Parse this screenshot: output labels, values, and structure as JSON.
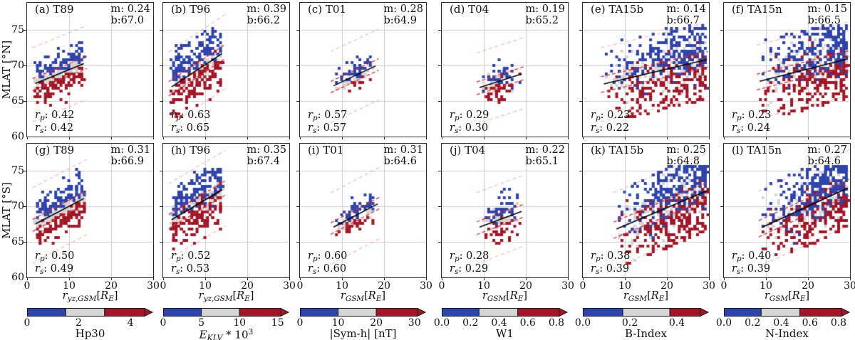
{
  "figure": {
    "background": "#ffffff"
  },
  "chart_data": {
    "type": "scatter",
    "grid": true,
    "xlim": [
      0,
      30
    ],
    "ylim_display": [
      60,
      78.8
    ],
    "x_ticks": [
      "0",
      "10",
      "20",
      "30"
    ],
    "x_tick_vals": [
      0,
      10,
      20,
      30
    ],
    "y_ticks": [
      "60",
      "65",
      "70",
      "75"
    ],
    "y_tick_vals": [
      60,
      65,
      70,
      75
    ],
    "y_axis": {
      "north_label": "MLAT [°N]",
      "south_label": "MLAT [°S]"
    },
    "stat_labels": {
      "m": "m",
      "b": "b",
      "r": "r",
      "p": "p",
      "s": "s"
    },
    "colors": {
      "blue": "#2e44ad",
      "gray": "#d5d5d5",
      "red": "#a31626",
      "fit": "#000000",
      "band_inner": "#e12a2e",
      "band_outer": "rgba(236,70,70,0.38)",
      "grid": "#cdcdcd",
      "axis": "#2b2b2b"
    },
    "xaxis_label_parts": {
      "yz": [
        {
          "t": "r",
          "i": true
        },
        {
          "t": "yz,GSM",
          "i": true,
          "sub": true
        },
        {
          "t": "["
        },
        {
          "t": "R",
          "i": true
        },
        {
          "t": "E",
          "i": true,
          "sub": true
        },
        {
          "t": "]"
        }
      ],
      "r": [
        {
          "t": "r",
          "i": true
        },
        {
          "t": "GSM",
          "i": true,
          "sub": true
        },
        {
          "t": "["
        },
        {
          "t": "R",
          "i": true
        },
        {
          "t": "E",
          "i": true,
          "sub": true
        },
        {
          "t": "]"
        }
      ]
    },
    "xaxis_label_by_col": [
      "yz",
      "yz",
      "r",
      "r",
      "r",
      "r"
    ],
    "panels": [
      {
        "id": "(a)",
        "model": "T89",
        "hemi": "N",
        "row": 0,
        "col": 0,
        "m": "0.24",
        "b": "67.0",
        "rp": "0.42",
        "rs": "0.42",
        "inner": 0.85,
        "outer": 5.2,
        "cloud": {
          "x0": 2,
          "x1": 13.5,
          "n": 320,
          "sigma": 1.5,
          "mix": 0.5,
          "bias": 0,
          "skew": "uniform",
          "ylo": 64.4,
          "yhi": 73.3
        }
      },
      {
        "id": "(b)",
        "model": "T96",
        "hemi": "N",
        "row": 0,
        "col": 1,
        "m": "0.39",
        "b": "66.2",
        "rp": "0.63",
        "rs": "0.65",
        "inner": 1.0,
        "outer": 5.2,
        "cloud": {
          "x0": 2,
          "x1": 14,
          "n": 380,
          "sigma": 2.0,
          "mix": 1.1,
          "bias": 0,
          "skew": "uniform",
          "ylo": 62.8,
          "yhi": 75.2
        }
      },
      {
        "id": "(c)",
        "model": "T01",
        "hemi": "N",
        "row": 0,
        "col": 2,
        "m": "0.28",
        "b": "64.9",
        "rp": "0.57",
        "rs": "0.57",
        "inner": 0.8,
        "outer": 5.0,
        "cloud": {
          "x0": 8,
          "x1": 18,
          "n": 95,
          "sigma": 0.95,
          "mix": 0.8,
          "bias": 0.55,
          "skew": "center",
          "ylo": 66.2,
          "yhi": 71.6
        }
      },
      {
        "id": "(d)",
        "model": "T04",
        "hemi": "N",
        "row": 0,
        "col": 3,
        "m": "0.19",
        "b": "65.2",
        "rp": "0.29",
        "rs": "0.30",
        "inner": 0.9,
        "outer": 5.0,
        "cloud": {
          "x0": 9,
          "x1": 19,
          "n": 115,
          "sigma": 1.4,
          "mix": 1.4,
          "bias": 0.15,
          "skew": "center",
          "ylo": 64.8,
          "yhi": 72.3
        }
      },
      {
        "id": "(e)",
        "model": "TA15b",
        "hemi": "N",
        "row": 0,
        "col": 4,
        "m": "0.14",
        "b": "66.7",
        "rp": "0.23",
        "rs": "0.22",
        "inner": 1.1,
        "outer": 5.2,
        "cloud": {
          "x0": 5,
          "x1": 29.5,
          "n": 700,
          "sigma": 2.6,
          "mix": 2.0,
          "bias": 0,
          "skew": "right",
          "ylo": 61.5,
          "yhi": 75.5
        }
      },
      {
        "id": "(f)",
        "model": "TA15n",
        "hemi": "N",
        "row": 0,
        "col": 5,
        "m": "0.15",
        "b": "66.5",
        "rp": "0.23",
        "rs": "0.24",
        "inner": 1.1,
        "outer": 5.2,
        "cloud": {
          "x0": 8.5,
          "x1": 29.5,
          "n": 640,
          "sigma": 2.6,
          "mix": 2.0,
          "bias": 0,
          "skew": "right",
          "ylo": 61.5,
          "yhi": 75.5
        }
      },
      {
        "id": "(g)",
        "model": "T89",
        "hemi": "S",
        "row": 1,
        "col": 0,
        "m": "0.31",
        "b": "66.9",
        "rp": "0.50",
        "rs": "0.49",
        "inner": 0.85,
        "outer": 5.3,
        "cloud": {
          "x0": 2,
          "x1": 13.5,
          "n": 360,
          "sigma": 1.7,
          "mix": 0.55,
          "bias": 0,
          "skew": "uniform",
          "ylo": 64.4,
          "yhi": 75.6
        }
      },
      {
        "id": "(h)",
        "model": "T96",
        "hemi": "S",
        "row": 1,
        "col": 1,
        "m": "0.35",
        "b": "67.4",
        "rp": "0.52",
        "rs": "0.53",
        "inner": 1.0,
        "outer": 5.3,
        "cloud": {
          "x0": 2,
          "x1": 14,
          "n": 400,
          "sigma": 2.1,
          "mix": 1.1,
          "bias": 0,
          "skew": "uniform",
          "ylo": 62.5,
          "yhi": 75.3
        }
      },
      {
        "id": "(i)",
        "model": "T01",
        "hemi": "S",
        "row": 1,
        "col": 2,
        "m": "0.31",
        "b": "64.6",
        "rp": "0.60",
        "rs": "0.60",
        "inner": 0.8,
        "outer": 5.0,
        "cloud": {
          "x0": 8,
          "x1": 18.5,
          "n": 115,
          "sigma": 1.05,
          "mix": 0.8,
          "bias": 0.55,
          "skew": "center",
          "ylo": 65.9,
          "yhi": 71.8
        }
      },
      {
        "id": "(j)",
        "model": "T04",
        "hemi": "S",
        "row": 1,
        "col": 3,
        "m": "0.22",
        "b": "65.1",
        "rp": "0.28",
        "rs": "0.29",
        "inner": 0.9,
        "outer": 5.0,
        "cloud": {
          "x0": 9,
          "x1": 19,
          "n": 125,
          "sigma": 1.5,
          "mix": 1.2,
          "bias": 0.2,
          "skew": "center",
          "ylo": 64.3,
          "yhi": 72.6
        }
      },
      {
        "id": "(k)",
        "model": "TA15b",
        "hemi": "S",
        "row": 1,
        "col": 4,
        "m": "0.25",
        "b": "64.8",
        "rp": "0.38",
        "rs": "0.39",
        "inner": 1.15,
        "outer": 5.3,
        "cloud": {
          "x0": 8,
          "x1": 29.5,
          "n": 700,
          "sigma": 2.8,
          "mix": 2.1,
          "bias": -0.05,
          "skew": "right",
          "ylo": 60.8,
          "yhi": 75.8
        }
      },
      {
        "id": "(l)",
        "model": "TA15n",
        "hemi": "S",
        "row": 1,
        "col": 5,
        "m": "0.27",
        "b": "64.6",
        "rp": "0.40",
        "rs": "0.39",
        "inner": 1.15,
        "outer": 5.3,
        "cloud": {
          "x0": 9,
          "x1": 29.5,
          "n": 640,
          "sigma": 2.7,
          "mix": 2.1,
          "bias": 0,
          "skew": "right",
          "ylo": 60.8,
          "yhi": 75.5
        }
      }
    ],
    "colorbars": [
      {
        "name": "hp30",
        "label_parts": [
          {
            "t": "Hp30"
          }
        ],
        "range": [
          0,
          4.55
        ],
        "bounds": [
          1.5,
          3.0
        ],
        "ticks": [
          "0",
          "2",
          "4"
        ],
        "tick_vals": [
          0,
          2,
          4
        ]
      },
      {
        "name": "eklv",
        "label_parts": [
          {
            "t": "E",
            "i": true
          },
          {
            "t": "KLV",
            "i": true,
            "sub": true
          },
          {
            "t": " * 10"
          },
          {
            "t": "3",
            "sup": true
          }
        ],
        "range": [
          0,
          15.4
        ],
        "bounds": [
          5,
          10
        ],
        "ticks": [
          "0",
          "5",
          "10",
          "15"
        ],
        "tick_vals": [
          0,
          5,
          10,
          15
        ]
      },
      {
        "name": "sym-h",
        "label_parts": [
          {
            "t": "|Sym-h| [nT]"
          }
        ],
        "range": [
          0,
          30.8
        ],
        "bounds": [
          10,
          20
        ],
        "ticks": [
          "0",
          "10",
          "20",
          "30"
        ],
        "tick_vals": [
          0,
          10,
          20,
          30
        ]
      },
      {
        "name": "w1",
        "label_parts": [
          {
            "t": "W1"
          }
        ],
        "range": [
          0,
          0.82
        ],
        "bounds": [
          0.26,
          0.53
        ],
        "ticks": [
          "0.0",
          "0.2",
          "0.4",
          "0.6",
          "0.8"
        ],
        "tick_vals": [
          0,
          0.2,
          0.4,
          0.6,
          0.8
        ]
      },
      {
        "name": "b-index",
        "label_parts": [
          {
            "t": "B-Index"
          }
        ],
        "range": [
          0,
          0.5
        ],
        "bounds": [
          0.17,
          0.37
        ],
        "ticks": [
          "0.0",
          "0.2",
          "0.4"
        ],
        "tick_vals": [
          0,
          0.2,
          0.4
        ]
      },
      {
        "name": "n-index",
        "label_parts": [
          {
            "t": "N-Index"
          }
        ],
        "range": [
          0,
          0.82
        ],
        "bounds": [
          0.26,
          0.53
        ],
        "ticks": [
          "0.0",
          "0.2",
          "0.4",
          "0.6",
          "0.8"
        ],
        "tick_vals": [
          0,
          0.2,
          0.4,
          0.6,
          0.8
        ]
      }
    ]
  }
}
